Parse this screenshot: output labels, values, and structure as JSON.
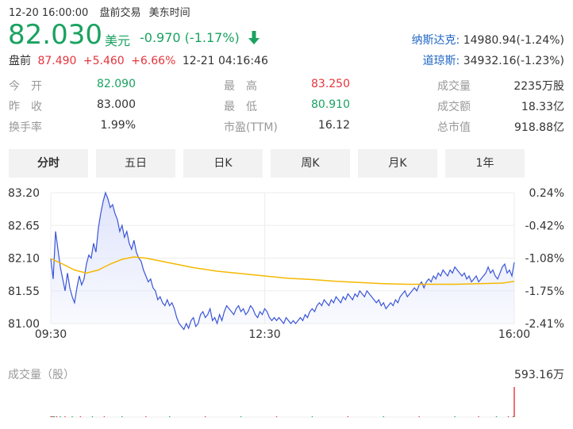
{
  "header": {
    "datetime": "12-20 16:00:00",
    "session": "盘前交易",
    "timezone": "美东时间"
  },
  "quote": {
    "price": "82.030",
    "currency": "美元",
    "change": "-0.970",
    "change_pct": "(-1.17%)",
    "direction_icon": "arrow-down-icon"
  },
  "premarket": {
    "label": "盘前",
    "price": "87.490",
    "change": "+5.460",
    "change_pct": "+6.66%",
    "time": "12-21 04:16:46"
  },
  "indices": [
    {
      "name": "纳斯达克:",
      "value": "14980.94(-1.24%)"
    },
    {
      "name": "道琼斯:",
      "value": "34932.16(-1.23%)"
    }
  ],
  "stats": {
    "col1": [
      {
        "label": "今　开",
        "value": "82.090",
        "color": "#1aa260"
      },
      {
        "label": "昨　收",
        "value": "83.000",
        "color": "#333333"
      },
      {
        "label": "换手率",
        "value": "1.99%",
        "color": "#333333"
      }
    ],
    "col2": [
      {
        "label": "最　高",
        "value": "83.250",
        "color": "#e5343b"
      },
      {
        "label": "最　低",
        "value": "80.910",
        "color": "#1aa260"
      },
      {
        "label": "市盈(TTM)",
        "value": "16.12",
        "color": "#333333"
      }
    ],
    "col3": [
      {
        "label": "成交量",
        "value": "2235万股",
        "color": "#333333"
      },
      {
        "label": "成交额",
        "value": "18.33亿",
        "color": "#333333"
      },
      {
        "label": "总市值",
        "value": "918.88亿",
        "color": "#333333"
      }
    ]
  },
  "tabs": [
    {
      "label": "分时",
      "active": true
    },
    {
      "label": "五日",
      "active": false
    },
    {
      "label": "日K",
      "active": false
    },
    {
      "label": "周K",
      "active": false
    },
    {
      "label": "月K",
      "active": false
    },
    {
      "label": "1年",
      "active": false
    }
  ],
  "colors": {
    "price_line": "#3a55d8",
    "avg_line": "#f5b800",
    "area_fill": "#dfe4fb",
    "up": "#e5343b",
    "down": "#1aa260"
  },
  "volume": {
    "label": "成交量（股）",
    "max_label": "593.16万"
  },
  "chart_data": {
    "type": "line",
    "y_ticks": [
      "83.20",
      "82.65",
      "82.10",
      "81.55",
      "81.00"
    ],
    "y_tick_values": [
      83.2,
      82.65,
      82.1,
      81.55,
      81.0
    ],
    "pct_ticks": [
      "0.24%",
      "-0.42%",
      "-1.08%",
      "-1.75%",
      "-2.41%"
    ],
    "x_ticks": [
      "09:30",
      "12:30",
      "16:00"
    ],
    "ylim": [
      81.0,
      83.2
    ],
    "xlim_minutes": [
      0,
      390
    ],
    "series": [
      {
        "values": [
          [
            0,
            82.09
          ],
          [
            2,
            81.75
          ],
          [
            4,
            82.55
          ],
          [
            6,
            82.25
          ],
          [
            8,
            81.95
          ],
          [
            10,
            81.75
          ],
          [
            12,
            81.55
          ],
          [
            14,
            81.85
          ],
          [
            16,
            81.6
          ],
          [
            18,
            81.45
          ],
          [
            20,
            81.35
          ],
          [
            22,
            81.6
          ],
          [
            24,
            81.8
          ],
          [
            26,
            81.65
          ],
          [
            28,
            81.75
          ],
          [
            30,
            82.0
          ],
          [
            32,
            82.15
          ],
          [
            34,
            82.1
          ],
          [
            36,
            82.35
          ],
          [
            38,
            82.2
          ],
          [
            40,
            82.6
          ],
          [
            42,
            82.85
          ],
          [
            44,
            83.05
          ],
          [
            46,
            83.2
          ],
          [
            48,
            83.1
          ],
          [
            50,
            82.95
          ],
          [
            52,
            83.0
          ],
          [
            54,
            82.85
          ],
          [
            56,
            82.75
          ],
          [
            58,
            82.55
          ],
          [
            60,
            82.65
          ],
          [
            62,
            82.45
          ],
          [
            64,
            82.55
          ],
          [
            66,
            82.35
          ],
          [
            68,
            82.25
          ],
          [
            70,
            82.4
          ],
          [
            72,
            82.2
          ],
          [
            74,
            82.1
          ],
          [
            76,
            82.05
          ],
          [
            78,
            81.9
          ],
          [
            80,
            81.8
          ],
          [
            82,
            81.7
          ],
          [
            84,
            81.75
          ],
          [
            86,
            81.6
          ],
          [
            88,
            81.55
          ],
          [
            90,
            81.4
          ],
          [
            92,
            81.45
          ],
          [
            94,
            81.35
          ],
          [
            96,
            81.3
          ],
          [
            98,
            81.4
          ],
          [
            100,
            81.3
          ],
          [
            102,
            81.35
          ],
          [
            104,
            81.25
          ],
          [
            106,
            81.1
          ],
          [
            108,
            81.0
          ],
          [
            110,
            80.95
          ],
          [
            112,
            80.9
          ],
          [
            114,
            81.0
          ],
          [
            116,
            80.92
          ],
          [
            118,
            81.05
          ],
          [
            120,
            81.1
          ],
          [
            122,
            80.95
          ],
          [
            124,
            81.0
          ],
          [
            126,
            81.15
          ],
          [
            128,
            81.2
          ],
          [
            130,
            81.1
          ],
          [
            132,
            81.15
          ],
          [
            134,
            81.25
          ],
          [
            136,
            81.05
          ],
          [
            138,
            81.1
          ],
          [
            140,
            81.0
          ],
          [
            142,
            81.15
          ],
          [
            144,
            81.05
          ],
          [
            146,
            81.2
          ],
          [
            148,
            81.3
          ],
          [
            150,
            81.25
          ],
          [
            152,
            81.2
          ],
          [
            154,
            81.15
          ],
          [
            156,
            81.25
          ],
          [
            158,
            81.3
          ],
          [
            160,
            81.2
          ],
          [
            162,
            81.25
          ],
          [
            164,
            81.15
          ],
          [
            166,
            81.2
          ],
          [
            168,
            81.3
          ],
          [
            170,
            81.25
          ],
          [
            172,
            81.15
          ],
          [
            174,
            81.1
          ],
          [
            176,
            81.2
          ],
          [
            178,
            81.15
          ],
          [
            180,
            81.25
          ],
          [
            182,
            81.2
          ],
          [
            184,
            81.1
          ],
          [
            186,
            81.05
          ],
          [
            188,
            81.1
          ],
          [
            190,
            81.05
          ],
          [
            192,
            81.1
          ],
          [
            194,
            81.05
          ],
          [
            196,
            81.0
          ],
          [
            198,
            81.1
          ],
          [
            200,
            81.05
          ],
          [
            202,
            81.0
          ],
          [
            204,
            81.05
          ],
          [
            206,
            81.0
          ],
          [
            208,
            81.05
          ],
          [
            210,
            81.1
          ],
          [
            212,
            81.05
          ],
          [
            214,
            81.15
          ],
          [
            216,
            81.1
          ],
          [
            218,
            81.2
          ],
          [
            220,
            81.25
          ],
          [
            222,
            81.2
          ],
          [
            224,
            81.3
          ],
          [
            226,
            81.35
          ],
          [
            228,
            81.3
          ],
          [
            230,
            81.4
          ],
          [
            232,
            81.35
          ],
          [
            234,
            81.3
          ],
          [
            236,
            81.4
          ],
          [
            238,
            81.35
          ],
          [
            240,
            81.45
          ],
          [
            242,
            81.4
          ],
          [
            244,
            81.35
          ],
          [
            246,
            81.45
          ],
          [
            248,
            81.4
          ],
          [
            250,
            81.5
          ],
          [
            252,
            81.45
          ],
          [
            254,
            81.4
          ],
          [
            256,
            81.5
          ],
          [
            258,
            81.45
          ],
          [
            260,
            81.55
          ],
          [
            262,
            81.5
          ],
          [
            264,
            81.45
          ],
          [
            266,
            81.55
          ],
          [
            268,
            81.5
          ],
          [
            270,
            81.45
          ],
          [
            272,
            81.4
          ],
          [
            274,
            81.35
          ],
          [
            276,
            81.4
          ],
          [
            278,
            81.3
          ],
          [
            280,
            81.35
          ],
          [
            282,
            81.25
          ],
          [
            284,
            81.3
          ],
          [
            286,
            81.35
          ],
          [
            288,
            81.3
          ],
          [
            290,
            81.4
          ],
          [
            292,
            81.35
          ],
          [
            294,
            81.45
          ],
          [
            296,
            81.5
          ],
          [
            298,
            81.55
          ],
          [
            300,
            81.45
          ],
          [
            302,
            81.5
          ],
          [
            304,
            81.55
          ],
          [
            306,
            81.6
          ],
          [
            308,
            81.55
          ],
          [
            310,
            81.65
          ],
          [
            312,
            81.7
          ],
          [
            314,
            81.6
          ],
          [
            316,
            81.7
          ],
          [
            318,
            81.75
          ],
          [
            320,
            81.7
          ],
          [
            322,
            81.8
          ],
          [
            324,
            81.75
          ],
          [
            326,
            81.85
          ],
          [
            328,
            81.8
          ],
          [
            330,
            81.9
          ],
          [
            332,
            81.85
          ],
          [
            334,
            81.8
          ],
          [
            336,
            81.9
          ],
          [
            338,
            81.85
          ],
          [
            340,
            81.95
          ],
          [
            342,
            81.9
          ],
          [
            344,
            81.85
          ],
          [
            346,
            81.8
          ],
          [
            348,
            81.85
          ],
          [
            350,
            81.75
          ],
          [
            352,
            81.8
          ],
          [
            354,
            81.7
          ],
          [
            356,
            81.75
          ],
          [
            358,
            81.8
          ],
          [
            360,
            81.7
          ],
          [
            362,
            81.75
          ],
          [
            364,
            81.8
          ],
          [
            366,
            81.85
          ],
          [
            368,
            81.95
          ],
          [
            370,
            81.85
          ],
          [
            372,
            81.9
          ],
          [
            374,
            81.8
          ],
          [
            376,
            81.75
          ],
          [
            378,
            81.85
          ],
          [
            380,
            81.95
          ],
          [
            382,
            82.0
          ],
          [
            384,
            81.85
          ],
          [
            386,
            81.9
          ],
          [
            388,
            81.8
          ],
          [
            390,
            82.03
          ]
        ]
      },
      {
        "values": [
          [
            0,
            82.09
          ],
          [
            10,
            82.0
          ],
          [
            20,
            81.9
          ],
          [
            30,
            81.85
          ],
          [
            40,
            81.9
          ],
          [
            50,
            82.0
          ],
          [
            60,
            82.08
          ],
          [
            70,
            82.12
          ],
          [
            80,
            82.1
          ],
          [
            90,
            82.06
          ],
          [
            100,
            82.02
          ],
          [
            110,
            81.98
          ],
          [
            120,
            81.94
          ],
          [
            140,
            81.88
          ],
          [
            160,
            81.84
          ],
          [
            180,
            81.8
          ],
          [
            200,
            81.76
          ],
          [
            220,
            81.74
          ],
          [
            240,
            81.71
          ],
          [
            260,
            81.69
          ],
          [
            280,
            81.67
          ],
          [
            300,
            81.66
          ],
          [
            320,
            81.66
          ],
          [
            340,
            81.66
          ],
          [
            360,
            81.67
          ],
          [
            380,
            81.68
          ],
          [
            390,
            81.71
          ]
        ]
      }
    ],
    "volume_series": [
      [
        0,
        1.0,
        "up"
      ],
      [
        1,
        0.35,
        "down"
      ],
      [
        2,
        0.3,
        "up"
      ],
      [
        3,
        0.3,
        "down"
      ],
      [
        5,
        0.25,
        "up"
      ],
      [
        8,
        0.2,
        "down"
      ],
      [
        12,
        0.2,
        "up"
      ],
      [
        18,
        0.15,
        "down"
      ],
      [
        25,
        0.15,
        "up"
      ],
      [
        35,
        0.12,
        "down"
      ],
      [
        45,
        0.12,
        "up"
      ],
      [
        60,
        0.1,
        "down"
      ],
      [
        80,
        0.1,
        "up"
      ],
      [
        100,
        0.1,
        "down"
      ],
      [
        130,
        0.08,
        "up"
      ],
      [
        160,
        0.08,
        "down"
      ],
      [
        190,
        0.08,
        "up"
      ],
      [
        220,
        0.08,
        "down"
      ],
      [
        250,
        0.08,
        "up"
      ],
      [
        280,
        0.08,
        "down"
      ],
      [
        310,
        0.08,
        "up"
      ],
      [
        340,
        0.08,
        "down"
      ],
      [
        360,
        0.1,
        "up"
      ],
      [
        375,
        0.1,
        "down"
      ],
      [
        385,
        0.12,
        "up"
      ],
      [
        389,
        3.0,
        "down"
      ],
      [
        390,
        100.0,
        "up"
      ]
    ],
    "volume_max": "593.16万"
  }
}
